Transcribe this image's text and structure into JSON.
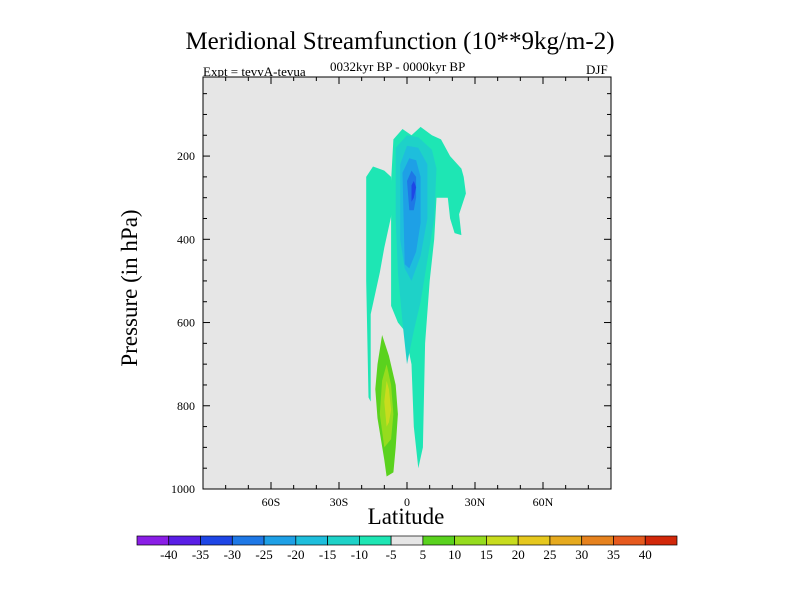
{
  "chart_data": {
    "type": "filled-contour",
    "title": "Meridional Streamfunction (10**9kg/m-2)",
    "subtitle_left": "Expt = tevvA-tevua",
    "subtitle_center": "0032kyr BP - 0000kyr BP",
    "subtitle_right": "DJF",
    "xlabel": "Latitude",
    "ylabel": "Pressure (in hPa)",
    "x_ticks": [
      {
        "value": -60,
        "label": "60S"
      },
      {
        "value": -30,
        "label": "30S"
      },
      {
        "value": 0,
        "label": "0"
      },
      {
        "value": 30,
        "label": "30N"
      },
      {
        "value": 60,
        "label": "60N"
      }
    ],
    "y_ticks": [
      {
        "value": 200,
        "label": "200"
      },
      {
        "value": 400,
        "label": "400"
      },
      {
        "value": 600,
        "label": "600"
      },
      {
        "value": 800,
        "label": "800"
      },
      {
        "value": 1000,
        "label": "1000"
      }
    ],
    "xlim": [
      -90,
      90
    ],
    "ylim": [
      1000,
      10
    ],
    "y_inverted": true,
    "background_color": "#e6e6e6",
    "colorbar": {
      "levels": [
        -40,
        -35,
        -30,
        -25,
        -20,
        -15,
        -10,
        -5,
        5,
        10,
        15,
        20,
        25,
        30,
        35,
        40
      ],
      "colors": [
        "#8a1ee6",
        "#5a1ee6",
        "#1e46e6",
        "#1e78e6",
        "#1ea0e6",
        "#1ebedc",
        "#1ed2c8",
        "#1ee6b4",
        "#e6e6e6",
        "#5ad21e",
        "#96dc1e",
        "#c8dc1e",
        "#e6c81e",
        "#e6aa1e",
        "#e6821e",
        "#e65a1e",
        "#d2280a"
      ]
    },
    "regions": [
      {
        "name": "southern-shoulder",
        "level": -5,
        "polygon": [
          [
            -17,
            780
          ],
          [
            -18,
            500
          ],
          [
            -18,
            250
          ],
          [
            -15,
            225
          ],
          [
            -10,
            235
          ],
          [
            -7,
            250
          ],
          [
            -6,
            320
          ],
          [
            -10,
            420
          ],
          [
            -12,
            480
          ],
          [
            -16,
            580
          ],
          [
            -16,
            790
          ]
        ]
      },
      {
        "name": "main-cell-outer",
        "level": -5,
        "polygon": [
          [
            -7,
            560
          ],
          [
            -7,
            400
          ],
          [
            -7,
            260
          ],
          [
            -6,
            160
          ],
          [
            -2,
            135
          ],
          [
            2,
            150
          ],
          [
            6,
            130
          ],
          [
            11,
            150
          ],
          [
            15,
            160
          ],
          [
            19,
            200
          ],
          [
            24,
            230
          ],
          [
            25,
            250
          ],
          [
            26,
            290
          ],
          [
            23,
            340
          ],
          [
            24,
            390
          ],
          [
            21,
            385
          ],
          [
            19,
            350
          ],
          [
            18,
            300
          ],
          [
            13,
            300
          ],
          [
            12,
            400
          ],
          [
            10,
            500
          ],
          [
            8,
            650
          ],
          [
            7,
            900
          ],
          [
            5,
            950
          ],
          [
            3,
            850
          ],
          [
            2,
            700
          ],
          [
            -1,
            620
          ],
          [
            -4,
            600
          ]
        ]
      },
      {
        "name": "main-cell-shade2",
        "level": -10,
        "polygon": [
          [
            -4,
            480
          ],
          [
            -5,
            350
          ],
          [
            -5,
            180
          ],
          [
            0,
            150
          ],
          [
            5,
            155
          ],
          [
            11,
            185
          ],
          [
            13,
            230
          ],
          [
            12,
            350
          ],
          [
            9,
            450
          ],
          [
            6,
            550
          ],
          [
            3,
            620
          ],
          [
            0,
            700
          ],
          [
            -2,
            600
          ]
        ]
      },
      {
        "name": "main-cell-shade3",
        "level": -15,
        "polygon": [
          [
            -3,
            400
          ],
          [
            -3,
            220
          ],
          [
            0,
            175
          ],
          [
            5,
            180
          ],
          [
            9,
            220
          ],
          [
            9,
            350
          ],
          [
            6,
            440
          ],
          [
            2,
            500
          ],
          [
            -1,
            470
          ]
        ]
      },
      {
        "name": "main-cell-shade4",
        "level": -20,
        "polygon": [
          [
            -1,
            460
          ],
          [
            -2,
            240
          ],
          [
            1,
            205
          ],
          [
            4,
            210
          ],
          [
            6,
            250
          ],
          [
            6,
            360
          ],
          [
            4,
            430
          ],
          [
            1,
            470
          ]
        ]
      },
      {
        "name": "main-cell-shade5",
        "level": -25,
        "polygon": [
          [
            1,
            330
          ],
          [
            0,
            260
          ],
          [
            2,
            235
          ],
          [
            4,
            250
          ],
          [
            4,
            300
          ],
          [
            3,
            330
          ]
        ]
      },
      {
        "name": "main-cell-core",
        "level": -30,
        "polygon": [
          [
            2,
            310
          ],
          [
            2,
            270
          ],
          [
            3,
            260
          ],
          [
            4,
            275
          ],
          [
            3,
            300
          ]
        ]
      },
      {
        "name": "southern-positive-outer",
        "level": 5,
        "polygon": [
          [
            -10,
            930
          ],
          [
            -13,
            830
          ],
          [
            -14,
            760
          ],
          [
            -13,
            700
          ],
          [
            -11,
            630
          ],
          [
            -8,
            680
          ],
          [
            -5,
            750
          ],
          [
            -4,
            820
          ],
          [
            -5,
            900
          ],
          [
            -6,
            960
          ],
          [
            -9,
            970
          ]
        ]
      },
      {
        "name": "southern-positive-inner",
        "level": 10,
        "polygon": [
          [
            -10,
            900
          ],
          [
            -12,
            820
          ],
          [
            -11,
            740
          ],
          [
            -9,
            700
          ],
          [
            -7,
            750
          ],
          [
            -6,
            820
          ],
          [
            -7,
            880
          ]
        ]
      },
      {
        "name": "southern-positive-core",
        "level": 15,
        "polygon": [
          [
            -9,
            850
          ],
          [
            -10,
            790
          ],
          [
            -9,
            740
          ],
          [
            -8,
            760
          ],
          [
            -7,
            810
          ],
          [
            -8,
            840
          ]
        ]
      }
    ]
  }
}
